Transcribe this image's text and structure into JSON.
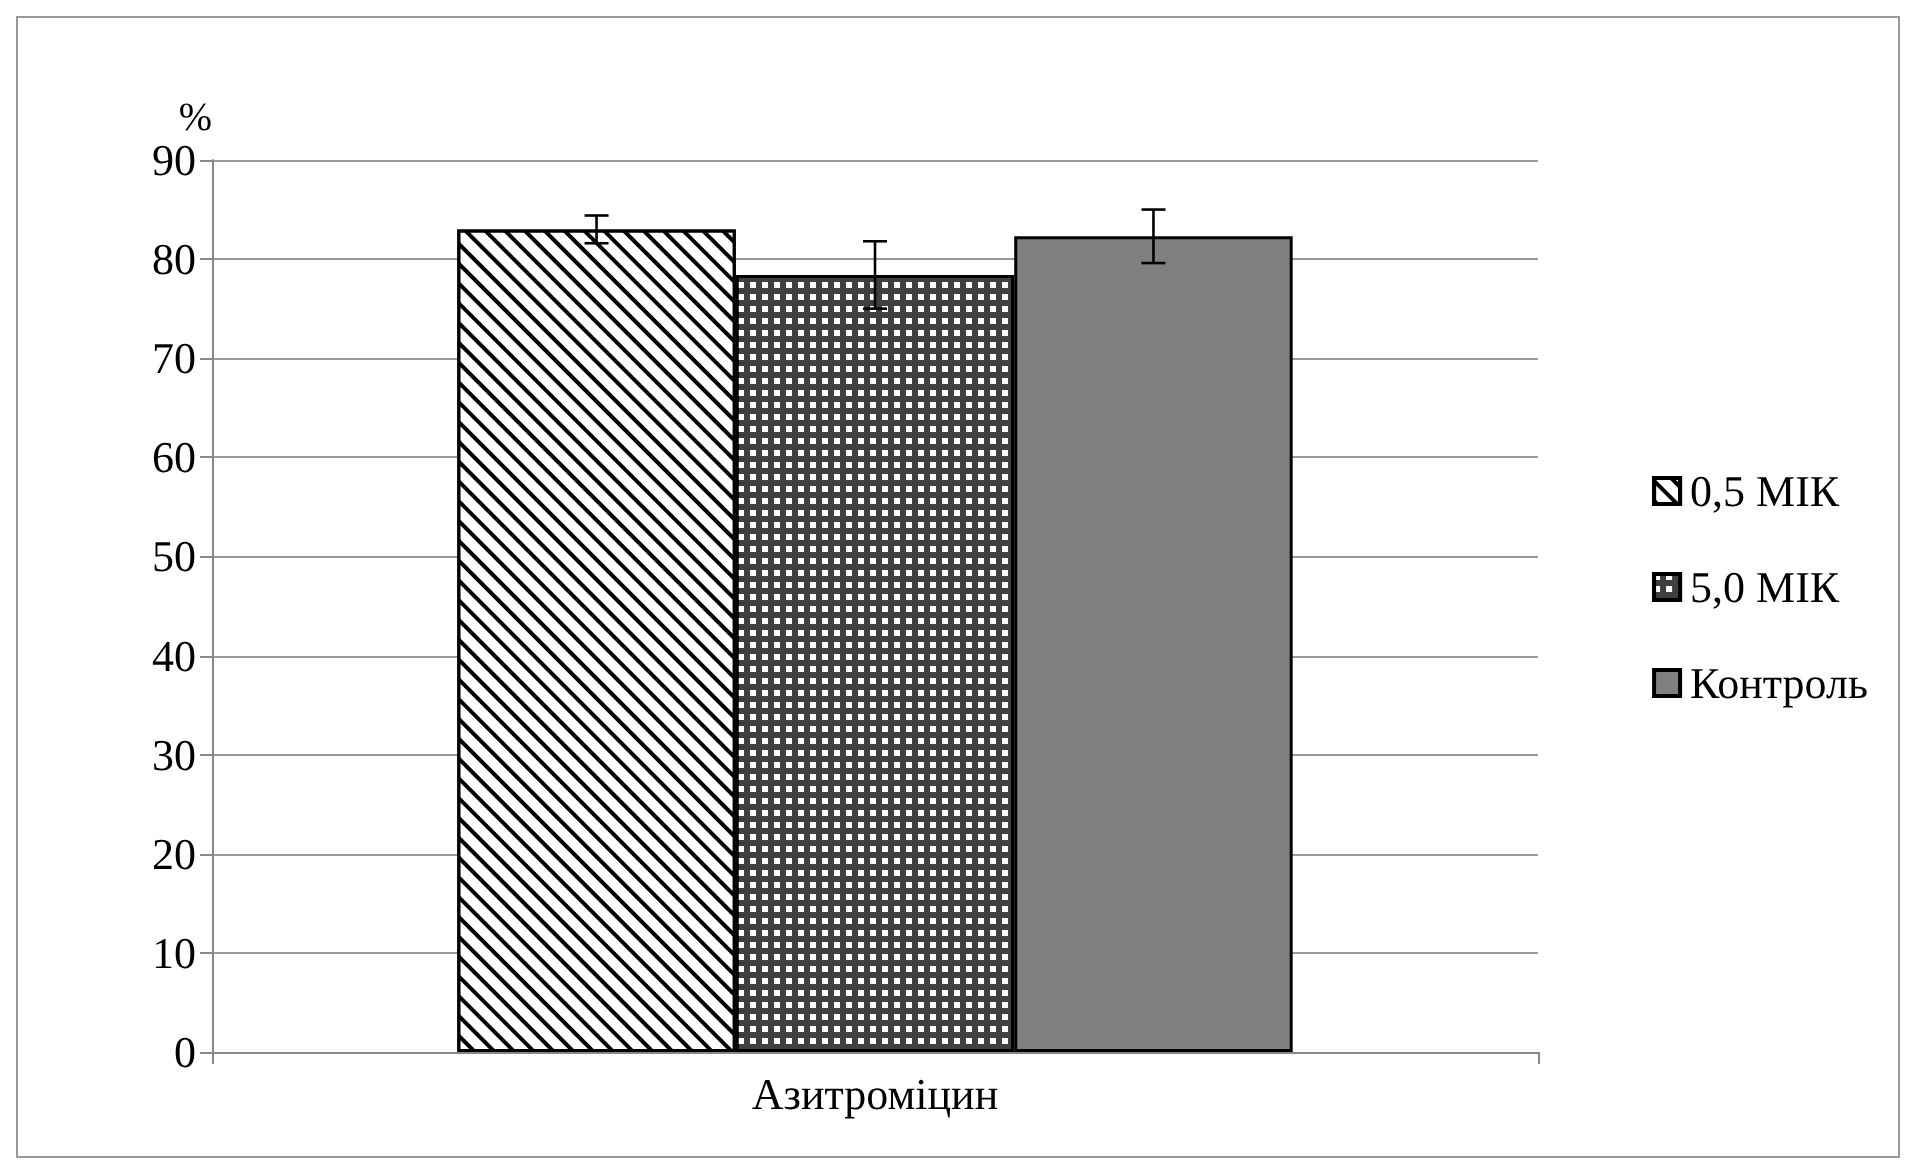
{
  "chart_data": {
    "type": "bar",
    "ylabel": "%",
    "categories": [
      "Азитроміцин"
    ],
    "series": [
      {
        "name": "0,5 МІК",
        "color": "#ffffff",
        "values": [
          83.0
        ],
        "errors": [
          1.4
        ]
      },
      {
        "name": "5,0 МІК",
        "color": "#404040",
        "values": [
          78.4
        ],
        "errors": [
          3.4
        ]
      },
      {
        "name": "Контроль",
        "color": "#808080",
        "values": [
          82.3
        ],
        "errors": [
          2.7
        ]
      }
    ],
    "ylim": [
      0,
      90
    ],
    "yticks": [
      0,
      10,
      20,
      30,
      40,
      50,
      60,
      70,
      80,
      90
    ],
    "grid": "y",
    "legend": "right"
  }
}
